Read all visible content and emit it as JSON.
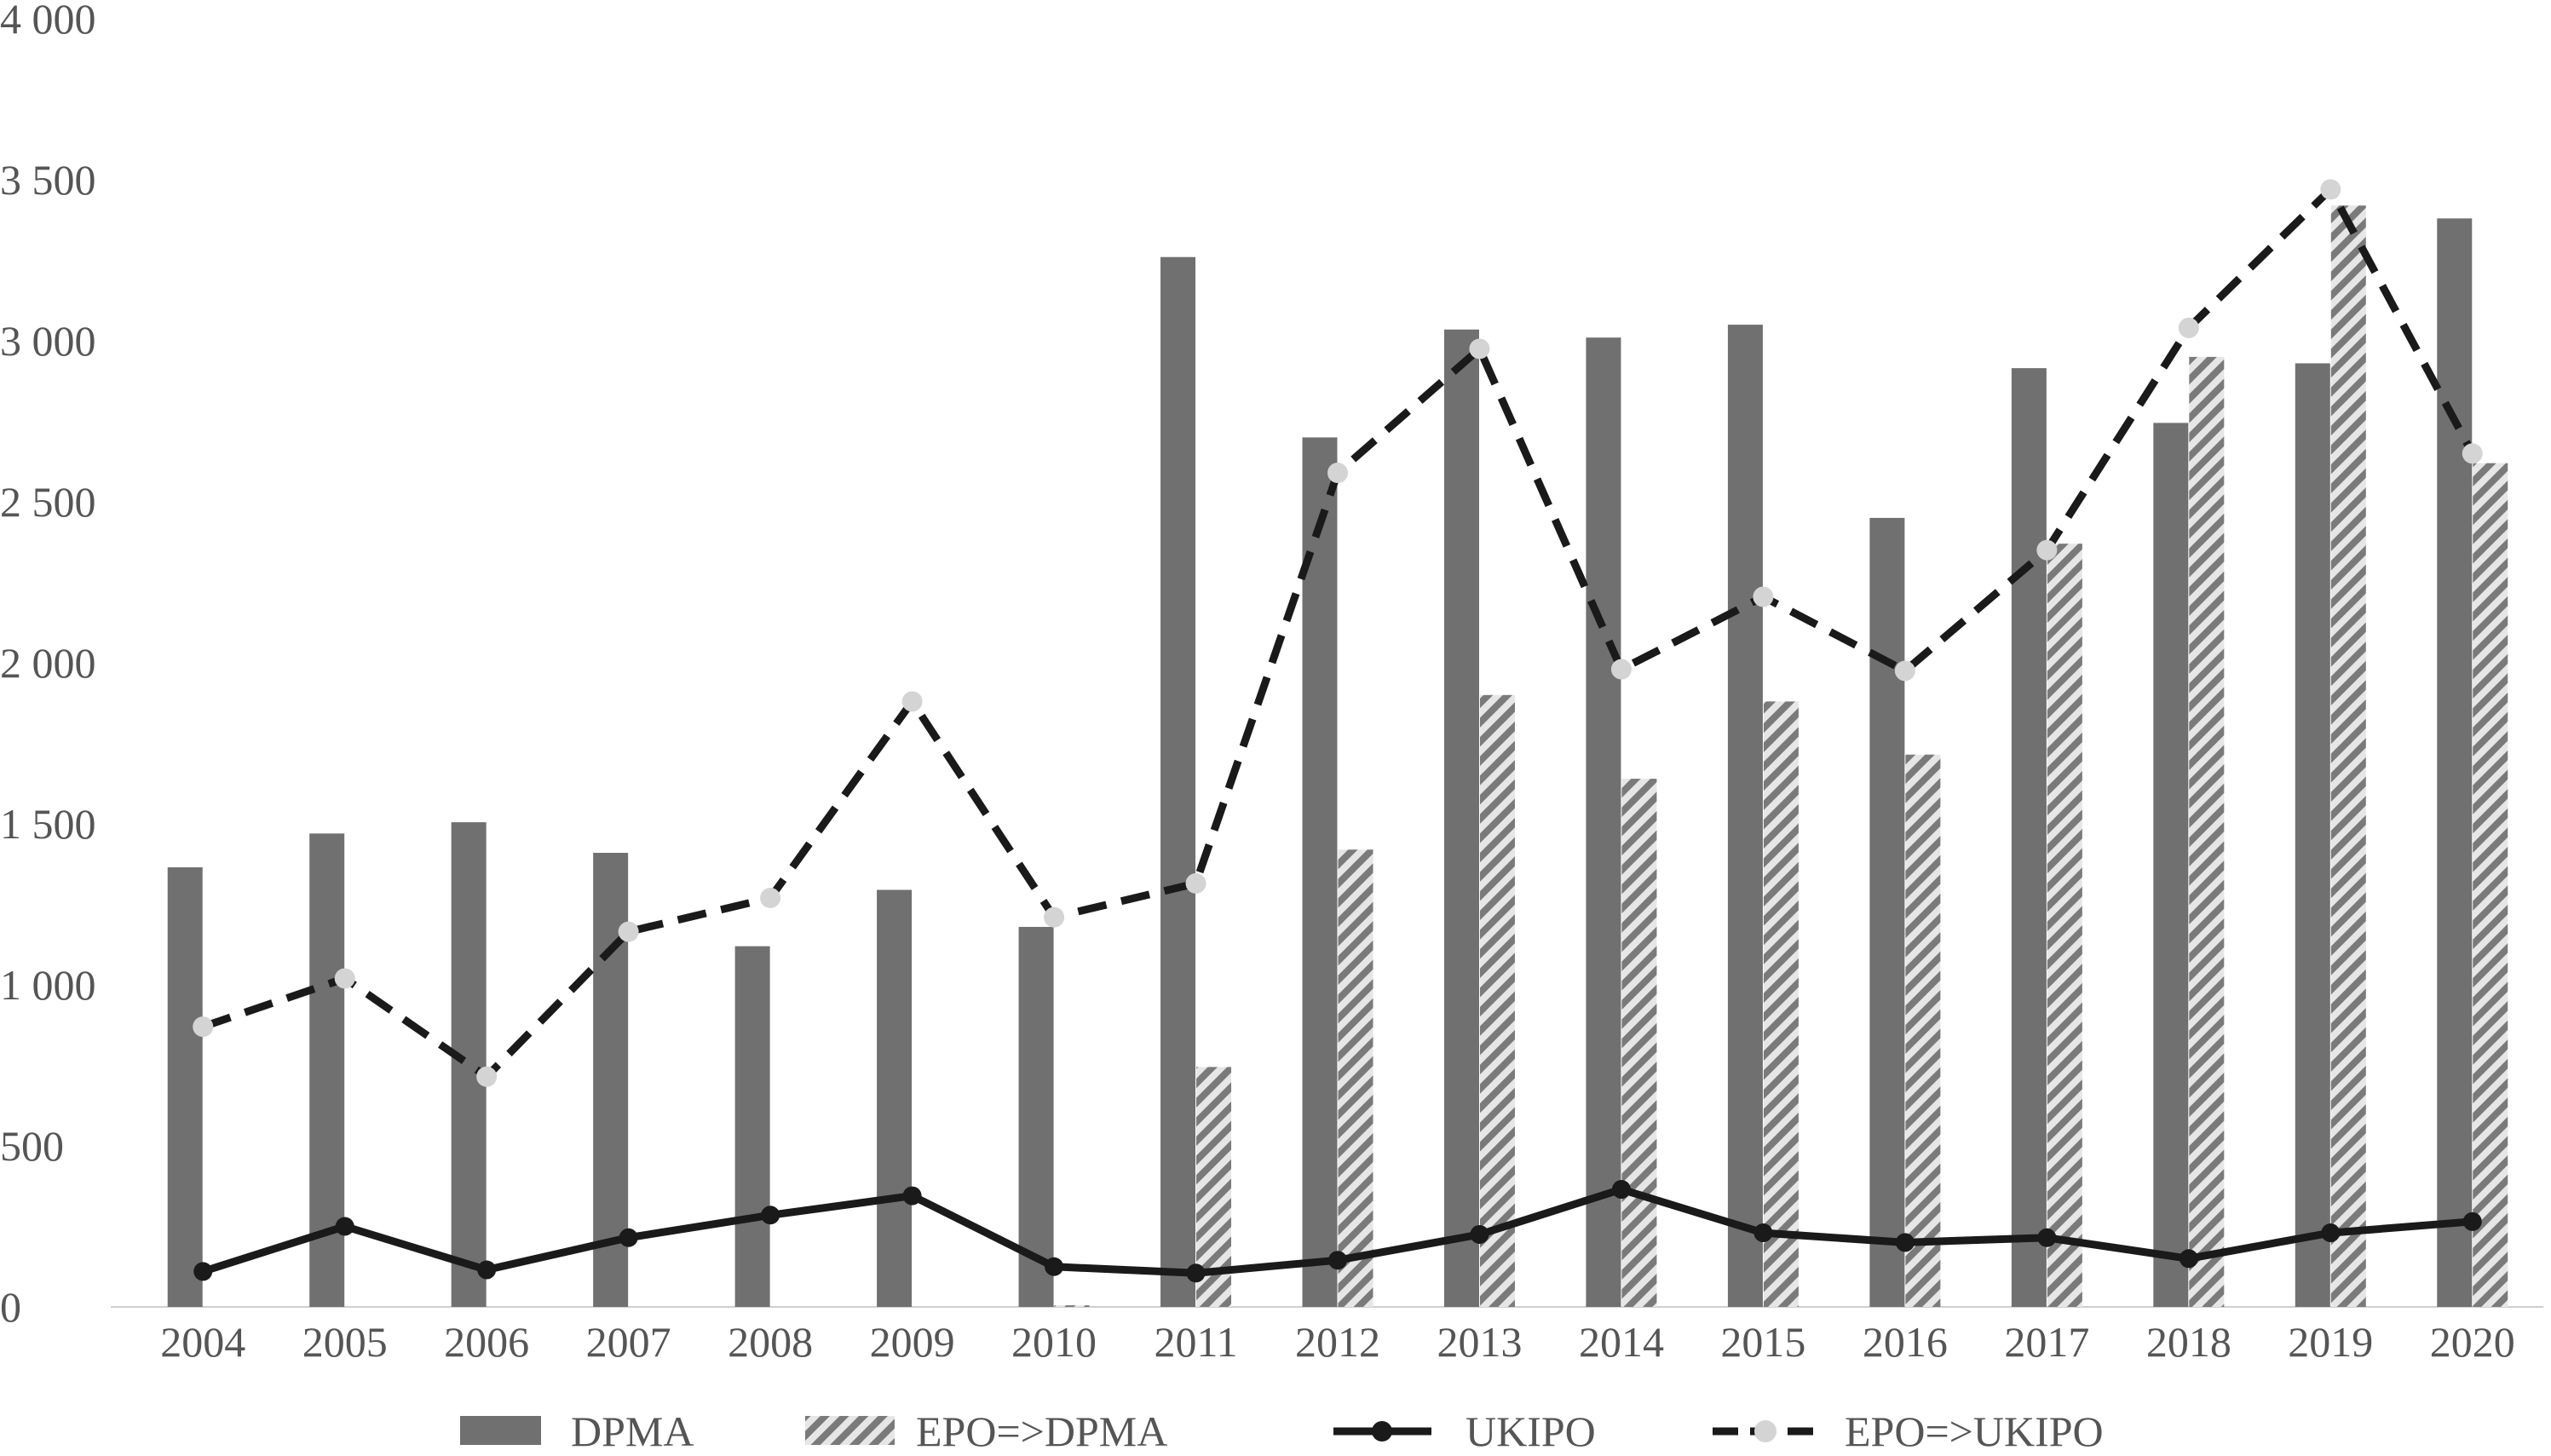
{
  "chart_data": {
    "type": "bar",
    "title": "",
    "xlabel": "",
    "ylabel": "",
    "categories": [
      "2004",
      "2005",
      "2006",
      "2007",
      "2008",
      "2009",
      "2010",
      "2011",
      "2012",
      "2013",
      "2014",
      "2015",
      "2016",
      "2017",
      "2018",
      "2019",
      "2020"
    ],
    "ylim": [
      0,
      4000
    ],
    "yticks": [
      0,
      500,
      1000,
      1500,
      2000,
      2500,
      3000,
      3500,
      4000
    ],
    "ytick_labels": [
      "0",
      "500",
      "1 000",
      "1 500",
      "2 000",
      "2 500",
      "3 000",
      "3 500",
      "4 000"
    ],
    "grid": false,
    "legend_position": "bottom",
    "series": [
      {
        "name": "DPMA",
        "type": "bar",
        "style": "solid",
        "color": "#707070",
        "values": [
          1365,
          1470,
          1505,
          1410,
          1120,
          1295,
          1180,
          3260,
          2700,
          3035,
          3010,
          3050,
          2450,
          2915,
          2745,
          2930,
          3380
        ]
      },
      {
        "name": "EPO=>DPMA",
        "type": "bar",
        "style": "hatched",
        "color": "#7a7a7a",
        "values": [
          0,
          0,
          0,
          0,
          0,
          0,
          5,
          745,
          1420,
          1900,
          1640,
          1880,
          1715,
          2370,
          2950,
          3420,
          2620
        ]
      },
      {
        "name": "UKIPO",
        "type": "line",
        "style": "solid",
        "color": "#1a1a1a",
        "values": [
          110,
          250,
          115,
          215,
          285,
          345,
          125,
          105,
          145,
          225,
          365,
          230,
          200,
          215,
          150,
          230,
          265
        ]
      },
      {
        "name": "EPO=>UKIPO",
        "type": "line",
        "style": "dashed",
        "color": "#1a1a1a",
        "marker_color": "#d4d4d4",
        "values": [
          870,
          1020,
          715,
          1165,
          1270,
          1880,
          1210,
          1315,
          2590,
          2975,
          1980,
          2205,
          1975,
          2350,
          3040,
          3470,
          2650
        ]
      }
    ]
  }
}
